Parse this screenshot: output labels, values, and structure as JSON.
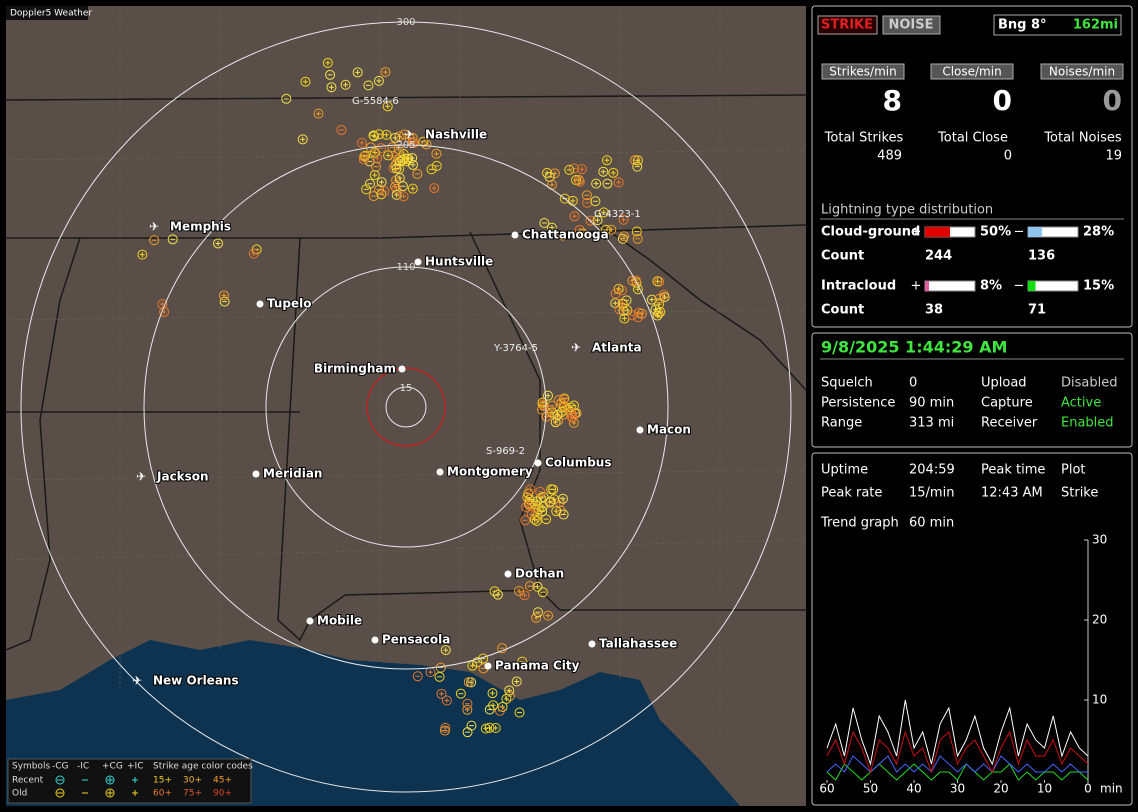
{
  "map": {
    "app_label": "Doppler5 Weather",
    "ring_labels": [
      "300",
      "205",
      "110",
      "15"
    ],
    "storm_labels": [
      "G-5584-6",
      "G-4323-1",
      "Y-3764-5",
      "S-969-2"
    ],
    "cities": [
      {
        "name": "Nashville",
        "airport": true
      },
      {
        "name": "Memphis",
        "airport": true
      },
      {
        "name": "Chattanooga",
        "airport": false
      },
      {
        "name": "Huntsville",
        "airport": false
      },
      {
        "name": "Tupelo",
        "airport": false
      },
      {
        "name": "Birmingham",
        "airport": false
      },
      {
        "name": "Atlanta",
        "airport": true
      },
      {
        "name": "Macon",
        "airport": false
      },
      {
        "name": "Columbus",
        "airport": false
      },
      {
        "name": "Montgomery",
        "airport": false
      },
      {
        "name": "Jackson",
        "airport": true
      },
      {
        "name": "Meridian",
        "airport": false
      },
      {
        "name": "Dothan",
        "airport": false
      },
      {
        "name": "Mobile",
        "airport": false
      },
      {
        "name": "Pensacola",
        "airport": false
      },
      {
        "name": "Panama City",
        "airport": false
      },
      {
        "name": "Tallahassee",
        "airport": false
      },
      {
        "name": "New Orleans",
        "airport": true
      }
    ],
    "legend": {
      "symbols": "Symbols",
      "headers": [
        "-CG",
        "-IC",
        "+CG",
        "+IC"
      ],
      "age_title": "Strike age color codes",
      "rows": [
        "Recent",
        "Old"
      ],
      "recent_ages": [
        "15+",
        "30+",
        "45+"
      ],
      "old_ages": [
        "60+",
        "75+",
        "90+"
      ]
    }
  },
  "status": {
    "strike_button": "STRIKE",
    "noise_button": "NOISE",
    "bearing": "Bng 8°",
    "distance": "162mi",
    "rate_headers": [
      "Strikes/min",
      "Close/min",
      "Noises/min"
    ],
    "rates": [
      8,
      0,
      0
    ],
    "total_labels": [
      "Total Strikes",
      "Total Close",
      "Total Noises"
    ],
    "totals": [
      489,
      0,
      19
    ],
    "distribution_title": "Lightning type distribution",
    "plus": "+",
    "minus": "−",
    "count_label": "Count",
    "types": [
      {
        "name": "Cloud-ground",
        "pos_pct": {
          "value": 50,
          "label": "50%"
        },
        "neg_pct": {
          "value": 28,
          "label": "28%"
        },
        "pos_count": 244,
        "neg_count": 136
      },
      {
        "name": "Intracloud",
        "pos_pct": {
          "value": 8,
          "label": "8%"
        },
        "neg_pct": {
          "value": 15,
          "label": "15%"
        },
        "pos_count": 38,
        "neg_count": 71
      }
    ]
  },
  "settings": {
    "datetime": "9/8/2025 1:44:29 AM",
    "rows": [
      [
        "Squelch",
        "0",
        "Upload",
        "Disabled"
      ],
      [
        "Persistence",
        "90 min",
        "Capture",
        "Active"
      ],
      [
        "Range",
        "313 mi",
        "Receiver",
        "Enabled"
      ]
    ]
  },
  "stats": {
    "rows": [
      [
        "Uptime",
        "204:59",
        "Peak time",
        "Plot"
      ],
      [
        "Peak rate",
        "15/min",
        "12:43 AM",
        "Strike"
      ]
    ],
    "trend_label": "Trend graph",
    "trend_value": "60 min"
  },
  "chart_data": {
    "type": "line",
    "x": [
      60,
      58,
      56,
      54,
      52,
      50,
      48,
      46,
      44,
      42,
      40,
      38,
      36,
      34,
      32,
      30,
      28,
      26,
      24,
      22,
      20,
      18,
      16,
      14,
      12,
      10,
      8,
      6,
      4,
      2,
      0
    ],
    "xlim": [
      60,
      0
    ],
    "xticks": [
      60,
      50,
      40,
      30,
      20,
      10,
      0
    ],
    "xlabel": "min",
    "ylim": [
      0,
      30
    ],
    "yticks": [
      10,
      20,
      30
    ],
    "series": [
      {
        "color": "#ffffff",
        "values": [
          4,
          7,
          3,
          9,
          5,
          2,
          8,
          6,
          3,
          10,
          4,
          6,
          2,
          7,
          9,
          3,
          5,
          8,
          4,
          2,
          6,
          9,
          3,
          7,
          5,
          4,
          8,
          3,
          6,
          4,
          3
        ]
      },
      {
        "color": "#cc1010",
        "values": [
          3,
          5,
          2,
          6,
          4,
          1,
          5,
          4,
          2,
          6,
          3,
          4,
          1,
          5,
          6,
          2,
          4,
          5,
          3,
          1,
          4,
          6,
          2,
          5,
          3,
          3,
          5,
          2,
          4,
          3,
          2
        ]
      },
      {
        "color": "#4466ff",
        "values": [
          1,
          2,
          1,
          3,
          2,
          1,
          2,
          3,
          1,
          2,
          1,
          2,
          1,
          3,
          2,
          1,
          2,
          1,
          2,
          1,
          3,
          2,
          1,
          2,
          1,
          1,
          2,
          1,
          2,
          1,
          1
        ]
      },
      {
        "color": "#22dd22",
        "values": [
          1,
          0,
          2,
          1,
          0,
          1,
          2,
          1,
          0,
          1,
          2,
          1,
          0,
          1,
          1,
          0,
          2,
          1,
          0,
          1,
          1,
          2,
          0,
          1,
          0,
          1,
          1,
          0,
          1,
          1,
          0
        ]
      }
    ]
  }
}
